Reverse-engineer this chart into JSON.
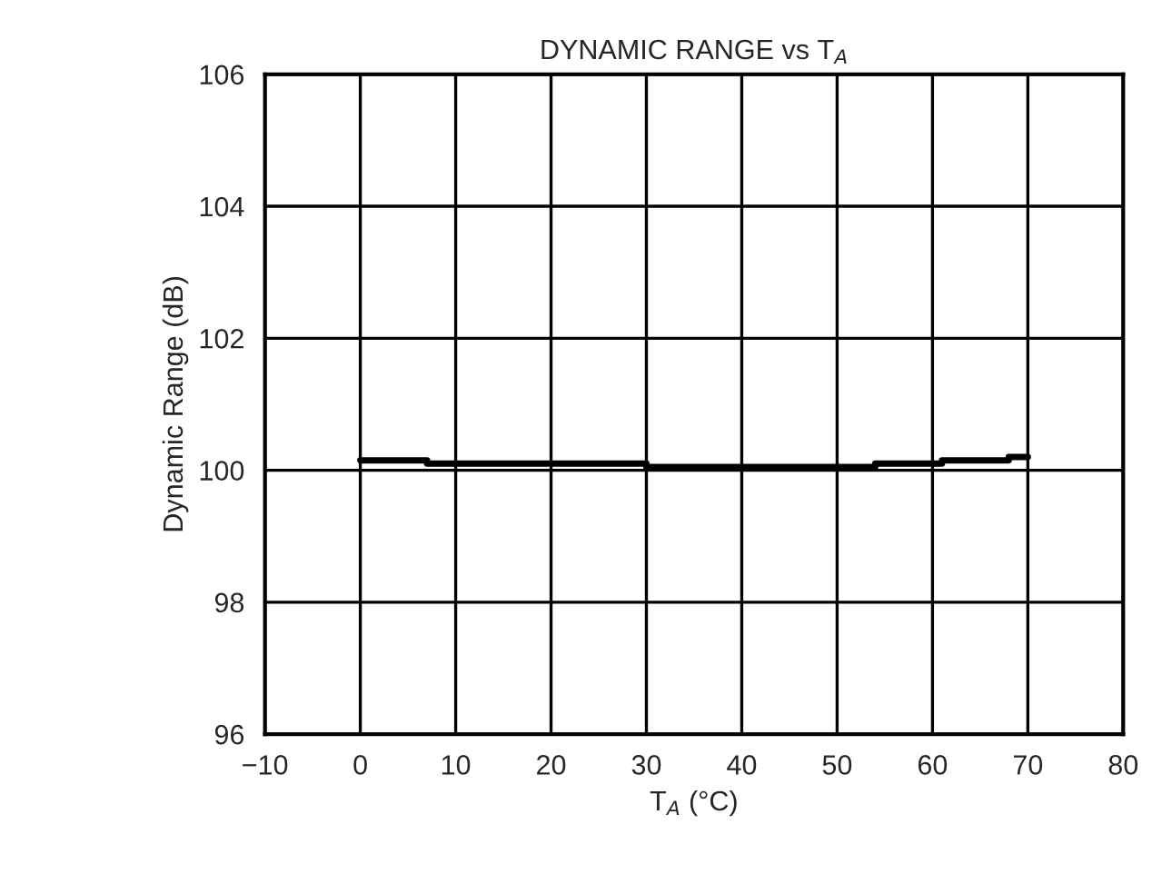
{
  "chart_data": {
    "type": "step",
    "title": "DYNAMIC RANGE vs T$_{A}$",
    "xlabel": "T$_{A}$ (°C)",
    "ylabel": "Dynamic Range (dB)",
    "x": [
      0,
      7,
      30,
      54,
      61,
      68,
      70
    ],
    "values": [
      100.15,
      100.1,
      100.05,
      100.1,
      100.15,
      100.2,
      100.2
    ],
    "color": "#000000",
    "xlim": [
      -10,
      80
    ],
    "xticks": [
      {
        "value": -10,
        "label": "−10"
      },
      0,
      10,
      20,
      30,
      40,
      50,
      60,
      70,
      80
    ],
    "ylim": [
      96,
      106
    ],
    "yticks": [
      96,
      98,
      100,
      102,
      104,
      106
    ],
    "grid": true,
    "legend": false
  }
}
